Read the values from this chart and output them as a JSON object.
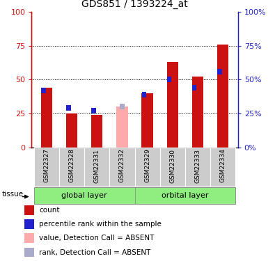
{
  "title": "GDS851 / 1393224_at",
  "samples": [
    "GSM22327",
    "GSM22328",
    "GSM22331",
    "GSM22332",
    "GSM22329",
    "GSM22330",
    "GSM22333",
    "GSM22334"
  ],
  "count_values": [
    44,
    25,
    24,
    0,
    40,
    63,
    52,
    76
  ],
  "rank_values": [
    42,
    29,
    27,
    0,
    39,
    50,
    44,
    56
  ],
  "absent_count": [
    0,
    0,
    0,
    30,
    0,
    0,
    0,
    0
  ],
  "absent_rank": [
    0,
    0,
    0,
    30,
    0,
    0,
    0,
    0
  ],
  "absent_flags": [
    false,
    false,
    false,
    true,
    false,
    false,
    false,
    false
  ],
  "red_color": "#cc1111",
  "blue_color": "#2222cc",
  "pink_color": "#ffaaaa",
  "light_blue_color": "#aaaacc",
  "green_bg": "#90ee80",
  "gray_bg": "#cccccc",
  "ylim": [
    0,
    100
  ],
  "yticks": [
    0,
    25,
    50,
    75,
    100
  ],
  "grid_lines": [
    25,
    50,
    75
  ],
  "legend_items": [
    {
      "label": "count",
      "color": "#cc1111"
    },
    {
      "label": "percentile rank within the sample",
      "color": "#2222cc"
    },
    {
      "label": "value, Detection Call = ABSENT",
      "color": "#ffaaaa"
    },
    {
      "label": "rank, Detection Call = ABSENT",
      "color": "#aaaacc"
    }
  ]
}
